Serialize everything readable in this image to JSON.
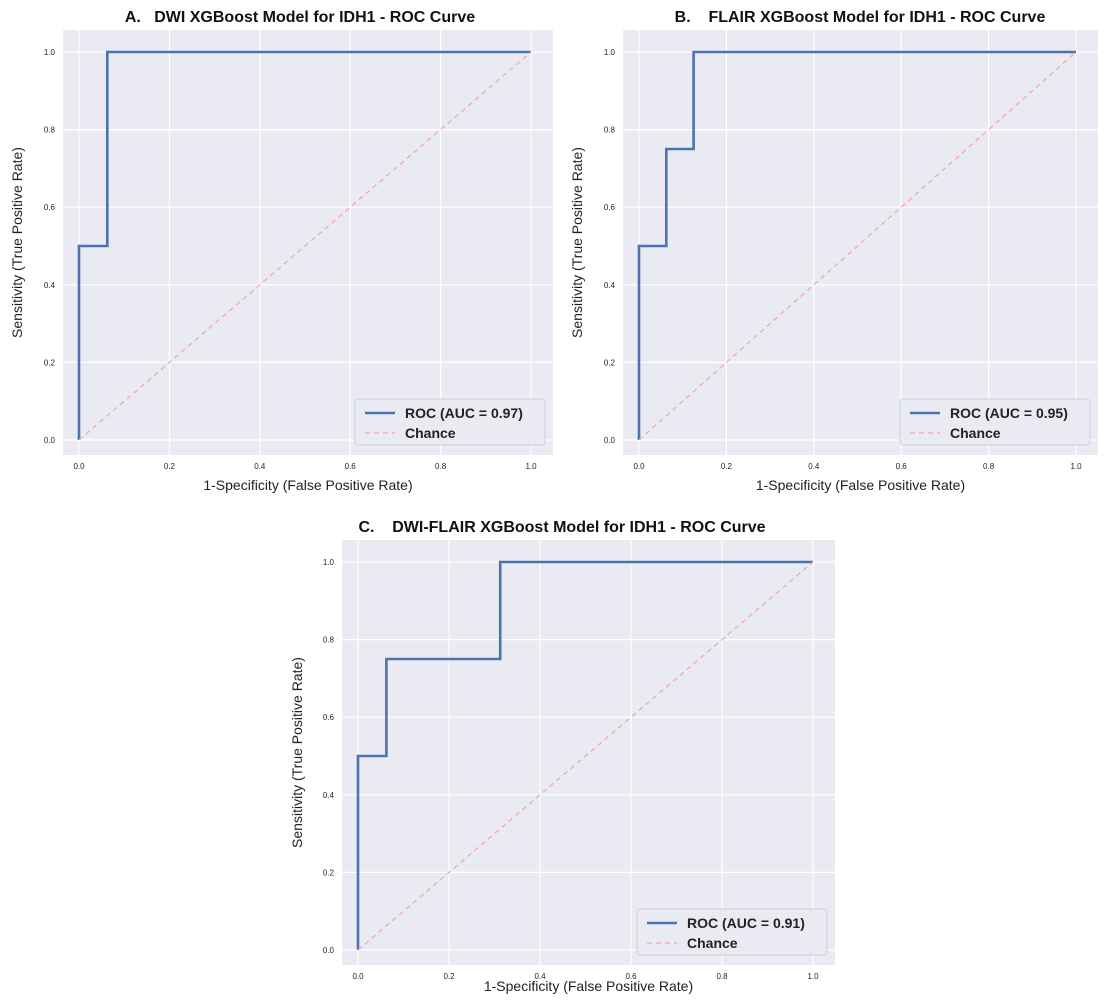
{
  "colors": {
    "roc": "#4c72b0",
    "chance": "#f5a8a8",
    "plot_bg": "#eaeaf2",
    "grid": "#ffffff"
  },
  "chart_data": [
    {
      "type": "line",
      "title": "A.   DWI XGBoost Model for IDH1 - ROC Curve",
      "xlabel": "1-Specificity (False Positive Rate)",
      "ylabel": "Sensitivity (True Positive Rate)",
      "xlim": [
        0,
        1
      ],
      "ylim": [
        0,
        1
      ],
      "xticks": [
        "0.0",
        "0.2",
        "0.4",
        "0.6",
        "0.8",
        "1.0"
      ],
      "yticks": [
        "0.0",
        "0.2",
        "0.4",
        "0.6",
        "0.8",
        "1.0"
      ],
      "grid": true,
      "legend_position": "bottom-right",
      "series": [
        {
          "name": "ROC (AUC = 0.97)",
          "style": "solid",
          "x": [
            0,
            0,
            0.0625,
            0.0625,
            1
          ],
          "y": [
            0,
            0.5,
            0.5,
            1,
            1
          ]
        },
        {
          "name": "Chance",
          "style": "dashed",
          "x": [
            0,
            1
          ],
          "y": [
            0,
            1
          ]
        }
      ]
    },
    {
      "type": "line",
      "title": "B.    FLAIR XGBoost Model for IDH1 - ROC Curve",
      "xlabel": "1-Specificity (False Positive Rate)",
      "ylabel": "Sensitivity (True Positive Rate)",
      "xlim": [
        0,
        1
      ],
      "ylim": [
        0,
        1
      ],
      "xticks": [
        "0.0",
        "0.2",
        "0.4",
        "0.6",
        "0.8",
        "1.0"
      ],
      "yticks": [
        "0.0",
        "0.2",
        "0.4",
        "0.6",
        "0.8",
        "1.0"
      ],
      "grid": true,
      "legend_position": "bottom-right",
      "series": [
        {
          "name": "ROC (AUC = 0.95)",
          "style": "solid",
          "x": [
            0,
            0,
            0.0625,
            0.0625,
            0.125,
            0.125,
            1
          ],
          "y": [
            0,
            0.5,
            0.5,
            0.75,
            0.75,
            1,
            1
          ]
        },
        {
          "name": "Chance",
          "style": "dashed",
          "x": [
            0,
            1
          ],
          "y": [
            0,
            1
          ]
        }
      ]
    },
    {
      "type": "line",
      "title": "C.    DWI-FLAIR XGBoost Model for IDH1 - ROC Curve",
      "xlabel": "1-Specificity (False Positive Rate)",
      "ylabel": "Sensitivity (True Positive Rate)",
      "xlim": [
        0,
        1
      ],
      "ylim": [
        0,
        1
      ],
      "xticks": [
        "0.0",
        "0.2",
        "0.4",
        "0.6",
        "0.8",
        "1.0"
      ],
      "yticks": [
        "0.0",
        "0.2",
        "0.4",
        "0.6",
        "0.8",
        "1.0"
      ],
      "grid": true,
      "legend_position": "bottom-right",
      "series": [
        {
          "name": "ROC (AUC = 0.91)",
          "style": "solid",
          "x": [
            0,
            0,
            0.0625,
            0.0625,
            0.3125,
            0.3125,
            1
          ],
          "y": [
            0,
            0.5,
            0.5,
            0.75,
            0.75,
            1,
            1
          ]
        },
        {
          "name": "Chance",
          "style": "dashed",
          "x": [
            0,
            1
          ],
          "y": [
            0,
            1
          ]
        }
      ]
    }
  ]
}
